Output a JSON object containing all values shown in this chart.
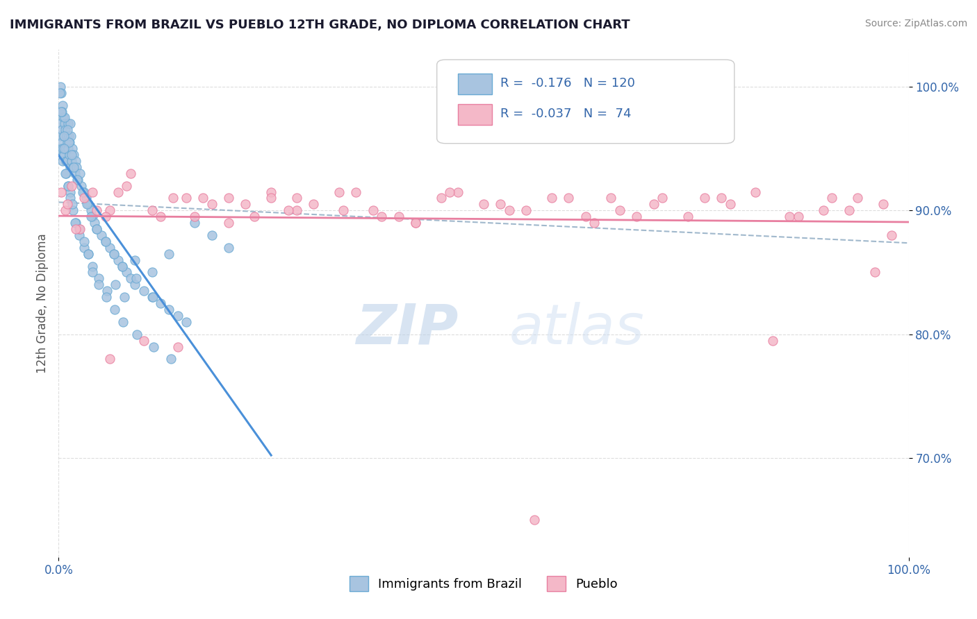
{
  "title": "IMMIGRANTS FROM BRAZIL VS PUEBLO 12TH GRADE, NO DIPLOMA CORRELATION CHART",
  "source": "Source: ZipAtlas.com",
  "ylabel": "12th Grade, No Diploma",
  "xlim": [
    0.0,
    100.0
  ],
  "ylim": [
    62.0,
    103.0
  ],
  "ytick_labels": [
    "70.0%",
    "80.0%",
    "90.0%",
    "100.0%"
  ],
  "ytick_values": [
    70.0,
    80.0,
    90.0,
    100.0
  ],
  "legend_entries": [
    {
      "label": "Immigrants from Brazil",
      "R": -0.176,
      "N": 120
    },
    {
      "label": "Pueblo",
      "R": -0.037,
      "N": 74
    }
  ],
  "blue_scatter_x": [
    0.1,
    0.15,
    0.2,
    0.25,
    0.3,
    0.35,
    0.4,
    0.45,
    0.5,
    0.55,
    0.6,
    0.65,
    0.7,
    0.75,
    0.8,
    0.85,
    0.9,
    0.95,
    1.0,
    1.05,
    1.1,
    1.15,
    1.2,
    1.25,
    1.3,
    1.35,
    1.4,
    1.45,
    1.5,
    1.6,
    1.7,
    1.8,
    1.9,
    2.0,
    2.1,
    2.3,
    2.5,
    2.7,
    3.0,
    3.2,
    3.5,
    3.8,
    4.0,
    4.2,
    4.5,
    5.0,
    5.5,
    6.0,
    6.5,
    7.0,
    7.5,
    8.0,
    8.5,
    9.0,
    10.0,
    11.0,
    12.0,
    13.0,
    14.0,
    15.0,
    0.2,
    0.3,
    0.5,
    0.7,
    1.0,
    1.2,
    1.5,
    1.8,
    2.2,
    2.8,
    3.3,
    3.8,
    4.5,
    5.5,
    6.5,
    7.5,
    9.0,
    11.0,
    13.0,
    0.4,
    0.6,
    0.9,
    1.1,
    1.4,
    1.7,
    2.0,
    2.4,
    3.0,
    3.5,
    4.0,
    4.7,
    5.7,
    6.7,
    7.7,
    9.1,
    11.1,
    0.1,
    0.3,
    0.6,
    0.8,
    1.1,
    1.4,
    1.6,
    1.9,
    2.4,
    3.0,
    3.5,
    4.0,
    4.7,
    5.6,
    6.6,
    7.6,
    9.2,
    11.2,
    13.2,
    16.0,
    18.0,
    20.0
  ],
  "blue_scatter_y": [
    94.5,
    95.0,
    97.0,
    96.0,
    98.0,
    95.5,
    96.5,
    94.0,
    95.0,
    97.5,
    96.0,
    94.5,
    97.0,
    95.0,
    96.5,
    95.0,
    94.0,
    96.0,
    95.5,
    94.0,
    97.0,
    95.0,
    96.0,
    94.5,
    95.5,
    97.0,
    93.5,
    96.0,
    94.0,
    95.0,
    93.5,
    94.5,
    93.0,
    94.0,
    93.5,
    92.5,
    93.0,
    92.0,
    91.5,
    91.0,
    90.5,
    90.0,
    89.5,
    89.0,
    88.5,
    88.0,
    87.5,
    87.0,
    86.5,
    86.0,
    85.5,
    85.0,
    84.5,
    84.0,
    83.5,
    83.0,
    82.5,
    82.0,
    81.5,
    81.0,
    100.0,
    99.5,
    98.5,
    97.5,
    96.5,
    95.5,
    94.5,
    93.5,
    92.5,
    91.5,
    90.5,
    89.5,
    88.5,
    87.5,
    86.5,
    85.5,
    86.0,
    85.0,
    86.5,
    98.0,
    96.0,
    93.0,
    92.0,
    91.5,
    90.0,
    89.0,
    88.0,
    87.0,
    86.5,
    85.5,
    84.5,
    83.5,
    84.0,
    83.0,
    84.5,
    83.0,
    99.5,
    98.0,
    95.0,
    93.0,
    92.0,
    91.0,
    90.5,
    89.0,
    88.5,
    87.5,
    86.5,
    85.0,
    84.0,
    83.0,
    82.0,
    81.0,
    80.0,
    79.0,
    78.0,
    89.0,
    88.0,
    87.0
  ],
  "pink_scatter_x": [
    0.3,
    0.8,
    1.5,
    2.5,
    4.0,
    6.0,
    8.5,
    12.0,
    17.0,
    22.0,
    28.0,
    35.0,
    42.0,
    50.0,
    58.0,
    66.0,
    74.0,
    82.0,
    90.0,
    96.0,
    1.0,
    3.0,
    5.5,
    8.0,
    11.0,
    15.0,
    20.0,
    25.0,
    30.0,
    38.0,
    45.0,
    53.0,
    62.0,
    70.0,
    78.0,
    86.0,
    93.0,
    98.0,
    2.0,
    4.5,
    7.0,
    10.0,
    13.5,
    18.0,
    23.0,
    28.0,
    33.5,
    40.0,
    47.0,
    55.0,
    63.0,
    71.0,
    79.0,
    87.0,
    94.0,
    6.0,
    14.0,
    20.0,
    27.0,
    33.0,
    42.0,
    52.0,
    60.0,
    68.0,
    76.0,
    84.0,
    91.0,
    97.0,
    16.0,
    25.0,
    37.0,
    46.0,
    56.0,
    65.0
  ],
  "pink_scatter_y": [
    91.5,
    90.0,
    92.0,
    88.5,
    91.5,
    90.0,
    93.0,
    89.5,
    91.0,
    90.5,
    90.0,
    91.5,
    89.0,
    90.5,
    91.0,
    90.0,
    89.5,
    91.5,
    90.0,
    85.0,
    90.5,
    91.0,
    89.5,
    92.0,
    90.0,
    91.0,
    89.0,
    91.5,
    90.5,
    89.5,
    91.0,
    90.0,
    89.5,
    90.5,
    91.0,
    89.5,
    90.0,
    88.0,
    88.5,
    90.0,
    91.5,
    79.5,
    91.0,
    90.5,
    89.5,
    91.0,
    90.0,
    89.5,
    91.5,
    90.0,
    89.0,
    91.0,
    90.5,
    89.5,
    91.0,
    78.0,
    79.0,
    91.0,
    90.0,
    91.5,
    89.0,
    90.5,
    91.0,
    89.5,
    91.0,
    79.5,
    91.0,
    90.5,
    89.5,
    91.0,
    90.0,
    91.5,
    65.0,
    91.0
  ],
  "watermark_zip": "ZIP",
  "watermark_atlas": "atlas",
  "blue_line_color": "#4a90d9",
  "pink_line_color": "#e87fa0",
  "dash_line_color": "#a0b8cc",
  "scatter_blue_color": "#a8c4e0",
  "scatter_blue_edge": "#6aaad4",
  "scatter_pink_color": "#f4b8c8",
  "scatter_pink_edge": "#e87fa0",
  "background_color": "#ffffff",
  "grid_color": "#dddddd",
  "title_color": "#1a1a2e",
  "axis_color": "#3366aa",
  "ylabel_color": "#555555"
}
